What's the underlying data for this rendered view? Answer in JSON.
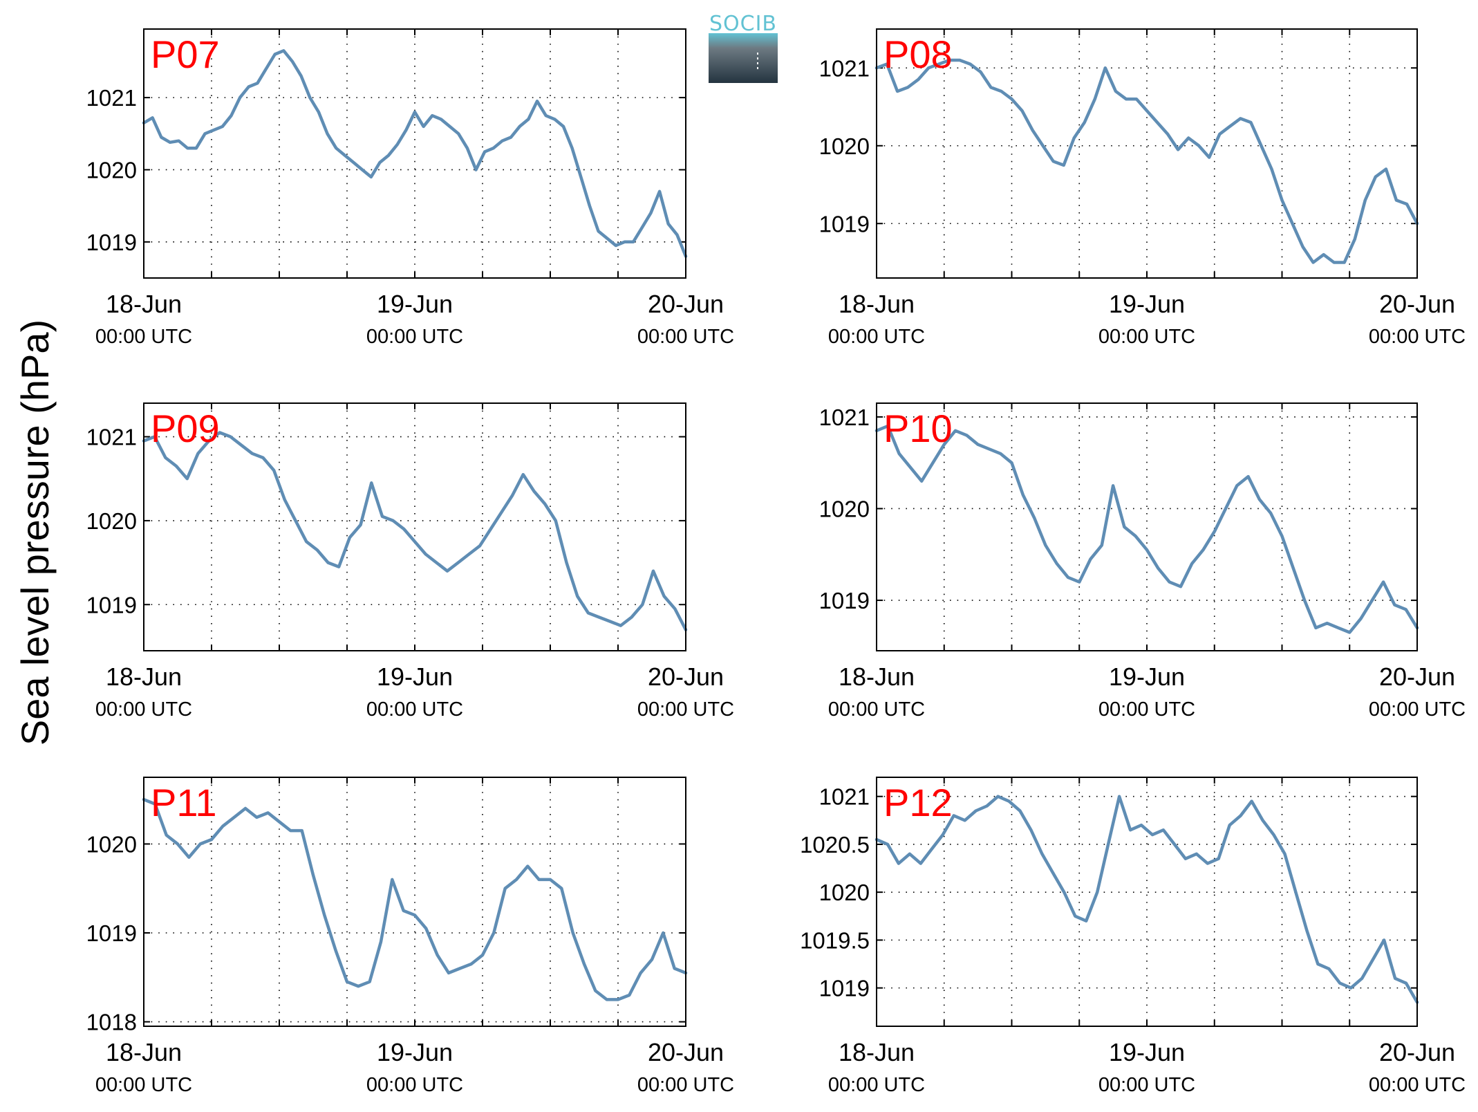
{
  "figure": {
    "ylabel": "Sea level pressure (hPa)",
    "logo_text": "SOCIB",
    "colors": {
      "line": "#5f8db4",
      "station_label": "#ff0000",
      "logo_text": "#62c2d3",
      "logo_top": "#6d7a82",
      "logo_bottom": "#243440"
    }
  },
  "chart_data": [
    {
      "type": "line",
      "label": "P07",
      "x_ticks": [
        {
          "date": "18-Jun",
          "time": "00:00 UTC"
        },
        {
          "date": "19-Jun",
          "time": "00:00 UTC"
        },
        {
          "date": "20-Jun",
          "time": "00:00 UTC"
        }
      ],
      "xlim_hours": [
        0,
        48
      ],
      "ylim": [
        1018.5,
        1021.95
      ],
      "yticks": [
        "1019",
        "1020",
        "1021"
      ],
      "y": [
        1020.65,
        1020.72,
        1020.45,
        1020.38,
        1020.4,
        1020.3,
        1020.3,
        1020.5,
        1020.55,
        1020.6,
        1020.75,
        1021.0,
        1021.15,
        1021.2,
        1021.4,
        1021.6,
        1021.65,
        1021.5,
        1021.3,
        1021.0,
        1020.8,
        1020.5,
        1020.3,
        1020.2,
        1020.1,
        1020.0,
        1019.9,
        1020.1,
        1020.2,
        1020.35,
        1020.55,
        1020.8,
        1020.6,
        1020.75,
        1020.7,
        1020.6,
        1020.5,
        1020.3,
        1020.0,
        1020.25,
        1020.3,
        1020.4,
        1020.45,
        1020.6,
        1020.7,
        1020.95,
        1020.75,
        1020.7,
        1020.6,
        1020.3,
        1019.9,
        1019.5,
        1019.15,
        1019.05,
        1018.95,
        1019.0,
        1019.0,
        1019.2,
        1019.4,
        1019.7,
        1019.25,
        1019.1,
        1018.8
      ]
    },
    {
      "type": "line",
      "label": "P08",
      "x_ticks": [
        {
          "date": "18-Jun",
          "time": "00:00 UTC"
        },
        {
          "date": "19-Jun",
          "time": "00:00 UTC"
        },
        {
          "date": "20-Jun",
          "time": "00:00 UTC"
        }
      ],
      "xlim_hours": [
        0,
        48
      ],
      "ylim": [
        1018.3,
        1021.5
      ],
      "yticks": [
        "1019",
        "1020",
        "1021"
      ],
      "y": [
        1021.0,
        1021.05,
        1020.7,
        1020.75,
        1020.85,
        1021.0,
        1021.05,
        1021.1,
        1021.1,
        1021.05,
        1020.95,
        1020.75,
        1020.7,
        1020.6,
        1020.45,
        1020.2,
        1020.0,
        1019.8,
        1019.75,
        1020.1,
        1020.3,
        1020.6,
        1021.0,
        1020.7,
        1020.6,
        1020.6,
        1020.45,
        1020.3,
        1020.15,
        1019.95,
        1020.1,
        1020.0,
        1019.85,
        1020.15,
        1020.25,
        1020.35,
        1020.3,
        1020.0,
        1019.7,
        1019.3,
        1019.0,
        1018.7,
        1018.5,
        1018.6,
        1018.5,
        1018.5,
        1018.8,
        1019.3,
        1019.6,
        1019.7,
        1019.3,
        1019.25,
        1019.0
      ]
    },
    {
      "type": "line",
      "label": "P09",
      "x_ticks": [
        {
          "date": "18-Jun",
          "time": "00:00 UTC"
        },
        {
          "date": "19-Jun",
          "time": "00:00 UTC"
        },
        {
          "date": "20-Jun",
          "time": "00:00 UTC"
        }
      ],
      "xlim_hours": [
        0,
        48
      ],
      "ylim": [
        1018.45,
        1021.4
      ],
      "yticks": [
        "1019",
        "1020",
        "1021"
      ],
      "y": [
        1020.95,
        1021.0,
        1020.75,
        1020.65,
        1020.5,
        1020.8,
        1020.95,
        1021.05,
        1021.0,
        1020.9,
        1020.8,
        1020.75,
        1020.6,
        1020.25,
        1020.0,
        1019.75,
        1019.65,
        1019.5,
        1019.45,
        1019.8,
        1019.95,
        1020.45,
        1020.05,
        1020.0,
        1019.9,
        1019.75,
        1019.6,
        1019.5,
        1019.4,
        1019.5,
        1019.6,
        1019.7,
        1019.9,
        1020.1,
        1020.3,
        1020.55,
        1020.35,
        1020.2,
        1020.0,
        1019.5,
        1019.1,
        1018.9,
        1018.85,
        1018.8,
        1018.75,
        1018.85,
        1019.0,
        1019.4,
        1019.1,
        1018.95,
        1018.7
      ]
    },
    {
      "type": "line",
      "label": "P10",
      "x_ticks": [
        {
          "date": "18-Jun",
          "time": "00:00 UTC"
        },
        {
          "date": "19-Jun",
          "time": "00:00 UTC"
        },
        {
          "date": "20-Jun",
          "time": "00:00 UTC"
        }
      ],
      "xlim_hours": [
        0,
        48
      ],
      "ylim": [
        1018.45,
        1021.15
      ],
      "yticks": [
        "1019",
        "1020",
        "1021"
      ],
      "y": [
        1020.85,
        1020.9,
        1020.6,
        1020.45,
        1020.3,
        1020.5,
        1020.7,
        1020.85,
        1020.8,
        1020.7,
        1020.65,
        1020.6,
        1020.5,
        1020.15,
        1019.9,
        1019.6,
        1019.4,
        1019.25,
        1019.2,
        1019.45,
        1019.6,
        1020.25,
        1019.8,
        1019.7,
        1019.55,
        1019.35,
        1019.2,
        1019.15,
        1019.4,
        1019.55,
        1019.75,
        1020.0,
        1020.25,
        1020.35,
        1020.1,
        1019.95,
        1019.7,
        1019.35,
        1019.0,
        1018.7,
        1018.75,
        1018.7,
        1018.65,
        1018.8,
        1019.0,
        1019.2,
        1018.95,
        1018.9,
        1018.7
      ]
    },
    {
      "type": "line",
      "label": "P11",
      "x_ticks": [
        {
          "date": "18-Jun",
          "time": "00:00 UTC"
        },
        {
          "date": "19-Jun",
          "time": "00:00 UTC"
        },
        {
          "date": "20-Jun",
          "time": "00:00 UTC"
        }
      ],
      "xlim_hours": [
        0,
        48
      ],
      "ylim": [
        1017.95,
        1020.75
      ],
      "yticks": [
        "1018",
        "1019",
        "1020"
      ],
      "y": [
        1020.5,
        1020.45,
        1020.1,
        1020.0,
        1019.85,
        1020.0,
        1020.05,
        1020.2,
        1020.3,
        1020.4,
        1020.3,
        1020.35,
        1020.25,
        1020.15,
        1020.15,
        1019.65,
        1019.2,
        1018.8,
        1018.45,
        1018.4,
        1018.45,
        1018.9,
        1019.6,
        1019.25,
        1019.2,
        1019.05,
        1018.75,
        1018.55,
        1018.6,
        1018.65,
        1018.75,
        1019.0,
        1019.5,
        1019.6,
        1019.75,
        1019.6,
        1019.6,
        1019.5,
        1019.0,
        1018.65,
        1018.35,
        1018.25,
        1018.25,
        1018.3,
        1018.55,
        1018.7,
        1019.0,
        1018.6,
        1018.55
      ]
    },
    {
      "type": "line",
      "label": "P12",
      "x_ticks": [
        {
          "date": "18-Jun",
          "time": "00:00 UTC"
        },
        {
          "date": "19-Jun",
          "time": "00:00 UTC"
        },
        {
          "date": "20-Jun",
          "time": "00:00 UTC"
        }
      ],
      "xlim_hours": [
        0,
        48
      ],
      "ylim": [
        1018.6,
        1021.2
      ],
      "yticks": [
        "1019",
        "1019.5",
        "1020",
        "1020.5",
        "1021"
      ],
      "y": [
        1020.55,
        1020.5,
        1020.3,
        1020.4,
        1020.3,
        1020.45,
        1020.6,
        1020.8,
        1020.75,
        1020.85,
        1020.9,
        1021.0,
        1020.95,
        1020.85,
        1020.65,
        1020.4,
        1020.2,
        1020.0,
        1019.75,
        1019.7,
        1020.0,
        1020.5,
        1021.0,
        1020.65,
        1020.7,
        1020.6,
        1020.65,
        1020.5,
        1020.35,
        1020.4,
        1020.3,
        1020.35,
        1020.7,
        1020.8,
        1020.95,
        1020.75,
        1020.6,
        1020.4,
        1020.0,
        1019.6,
        1019.25,
        1019.2,
        1019.05,
        1019.0,
        1019.1,
        1019.3,
        1019.5,
        1019.1,
        1019.05,
        1018.85
      ]
    }
  ]
}
